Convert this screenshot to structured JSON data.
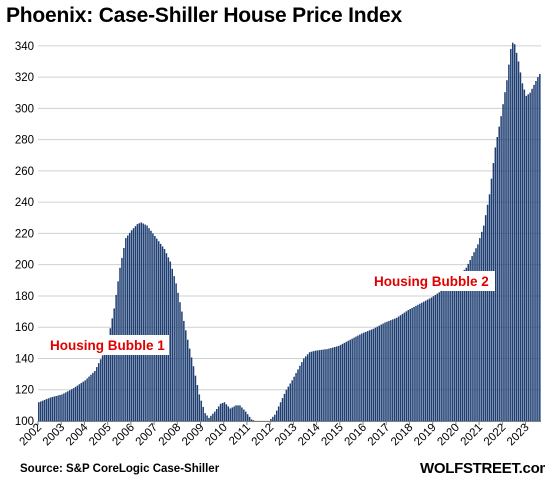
{
  "chart_data": {
    "type": "bar",
    "title": "Phoenix: Case-Shiller House Price Index",
    "xlabel": "",
    "ylabel": "",
    "ylim": [
      100,
      345
    ],
    "yticks": [
      100,
      120,
      140,
      160,
      180,
      200,
      220,
      240,
      260,
      280,
      300,
      320,
      340
    ],
    "grid": "horizontal",
    "color": "#1f3f73",
    "x_tick_labels": [
      "2002",
      "2003",
      "2004",
      "2005",
      "2006",
      "2007",
      "2008",
      "2009",
      "2010",
      "2011",
      "2012",
      "2013",
      "2014",
      "2015",
      "2016",
      "2017",
      "2018",
      "2019",
      "2020",
      "2021",
      "2022",
      "2023"
    ],
    "annotations": [
      {
        "text": "Housing Bubble 1"
      },
      {
        "text": "Housing Bubble 2"
      }
    ],
    "anchors": [
      [
        "2002-01",
        112
      ],
      [
        "2002-07",
        115
      ],
      [
        "2003-01",
        117
      ],
      [
        "2003-07",
        121
      ],
      [
        "2004-01",
        126
      ],
      [
        "2004-06",
        132
      ],
      [
        "2004-10",
        142
      ],
      [
        "2005-01",
        153
      ],
      [
        "2005-04",
        172
      ],
      [
        "2005-07",
        198
      ],
      [
        "2005-10",
        217
      ],
      [
        "2006-01",
        222
      ],
      [
        "2006-04",
        226
      ],
      [
        "2006-06",
        227
      ],
      [
        "2006-09",
        225
      ],
      [
        "2006-12",
        220
      ],
      [
        "2007-03",
        215
      ],
      [
        "2007-06",
        210
      ],
      [
        "2007-09",
        202
      ],
      [
        "2007-12",
        188
      ],
      [
        "2008-03",
        170
      ],
      [
        "2008-06",
        152
      ],
      [
        "2008-09",
        135
      ],
      [
        "2008-12",
        117
      ],
      [
        "2009-03",
        105
      ],
      [
        "2009-05",
        102
      ],
      [
        "2009-08",
        106
      ],
      [
        "2009-11",
        111
      ],
      [
        "2010-01",
        112
      ],
      [
        "2010-04",
        108
      ],
      [
        "2010-07",
        110
      ],
      [
        "2010-09",
        110
      ],
      [
        "2010-12",
        106
      ],
      [
        "2011-03",
        101
      ],
      [
        "2011-07",
        99
      ],
      [
        "2011-09",
        99
      ],
      [
        "2011-12",
        100
      ],
      [
        "2012-03",
        104
      ],
      [
        "2012-06",
        112
      ],
      [
        "2012-09",
        120
      ],
      [
        "2012-12",
        126
      ],
      [
        "2013-03",
        133
      ],
      [
        "2013-06",
        140
      ],
      [
        "2013-09",
        144
      ],
      [
        "2013-12",
        145
      ],
      [
        "2014-06",
        146
      ],
      [
        "2014-12",
        148
      ],
      [
        "2015-06",
        152
      ],
      [
        "2015-12",
        156
      ],
      [
        "2016-06",
        159
      ],
      [
        "2016-12",
        163
      ],
      [
        "2017-06",
        166
      ],
      [
        "2017-12",
        171
      ],
      [
        "2018-06",
        175
      ],
      [
        "2018-12",
        179
      ],
      [
        "2019-06",
        184
      ],
      [
        "2019-12",
        190
      ],
      [
        "2020-06",
        198
      ],
      [
        "2020-12",
        213
      ],
      [
        "2021-03",
        225
      ],
      [
        "2021-06",
        245
      ],
      [
        "2021-09",
        275
      ],
      [
        "2021-12",
        295
      ],
      [
        "2022-03",
        318
      ],
      [
        "2022-05",
        338
      ],
      [
        "2022-06",
        342
      ],
      [
        "2022-07",
        341
      ],
      [
        "2022-09",
        330
      ],
      [
        "2022-11",
        316
      ],
      [
        "2023-01",
        308
      ],
      [
        "2023-03",
        310
      ],
      [
        "2023-05",
        315
      ],
      [
        "2023-07",
        320
      ],
      [
        "2023-08",
        322
      ]
    ]
  },
  "footer": {
    "source": "Source: S&P CoreLogic Case-Shiller",
    "brand": "WOLFSTREET.com"
  }
}
